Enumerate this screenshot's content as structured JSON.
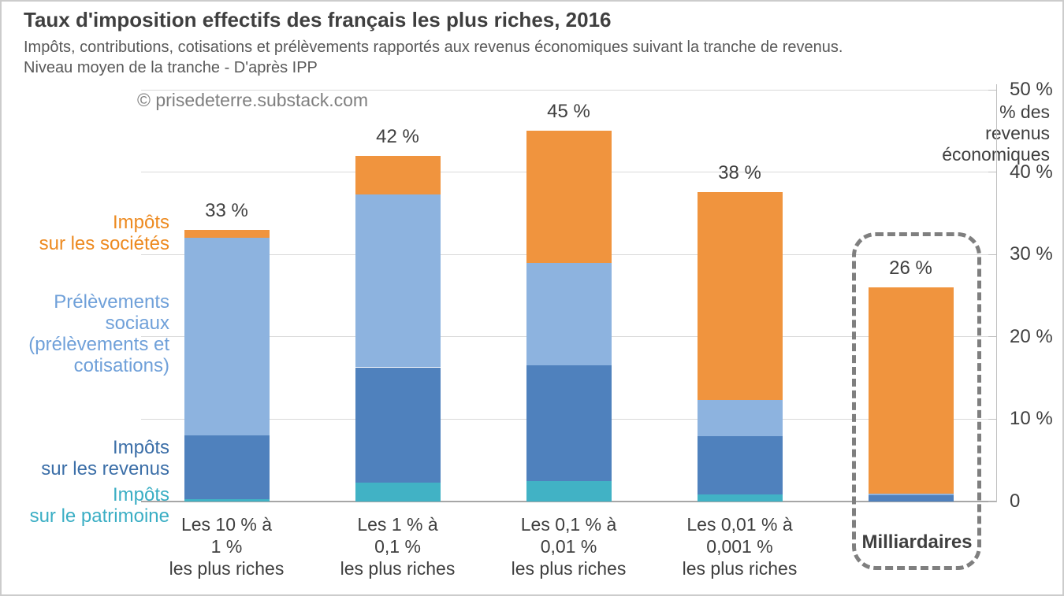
{
  "header": {
    "title": "Taux d'imposition effectifs des français les plus riches, 2016",
    "subtitle_line1": "Impôts, contributions, cotisations et prélèvements rapportés aux revenus économiques suivant la tranche de revenus.",
    "subtitle_line2": "Niveau moyen de la tranche - D'après IPP"
  },
  "watermark": "© prisedeterre.substack.com",
  "axis": {
    "tick_labels": [
      "0",
      "10 %",
      "20 %",
      "30 %",
      "40 %",
      "50 %"
    ],
    "title_lines": [
      "% des",
      "revenus",
      "économiques"
    ]
  },
  "legend": [
    {
      "name": "Impôts sur les sociétés",
      "lines": [
        "Impôts",
        "sur les sociétés"
      ],
      "color": "#ed8a20"
    },
    {
      "name": "Prélèvements sociaux (prélèvements et cotisations)",
      "lines": [
        "Prélèvements",
        "sociaux",
        "(prélèvements et",
        "cotisations)"
      ],
      "color": "#6fa0d9"
    },
    {
      "name": "Impôts sur les revenus",
      "lines": [
        "Impôts",
        "sur les revenus"
      ],
      "color": "#3c6fa8"
    },
    {
      "name": "Impôts sur le patrimoine",
      "lines": [
        "Impôts",
        "sur le patrimoine"
      ],
      "color": "#3aaec4"
    }
  ],
  "highlight": {
    "label": "Milliardaires"
  },
  "chart_data": {
    "type": "bar",
    "stacked": true,
    "title": "Taux d'imposition effectifs des français les plus riches, 2016",
    "ylabel": "% des revenus économiques",
    "ylim": [
      0,
      50
    ],
    "grid": true,
    "yaxis_side": "right",
    "categories": [
      "Les 10 % à 1 % les plus riches",
      "Les 1 % à 0,1 % les plus riches",
      "Les 0,1 % à 0,01 % les plus riches",
      "Les 0,01 % à 0,001 % les plus riches",
      "Milliardaires"
    ],
    "category_lines": [
      [
        "Les 10 % à",
        "1 %",
        "les plus riches"
      ],
      [
        "Les 1 % à",
        "0,1 %",
        "les plus riches"
      ],
      [
        "Les 0,1 % à",
        "0,01 %",
        "les plus riches"
      ],
      [
        "Les 0,01 % à",
        "0,001 %",
        "les plus riches"
      ],
      [
        "Milliardaires"
      ]
    ],
    "series": [
      {
        "name": "Impôts sur le patrimoine",
        "color": "#41b2c5",
        "values": [
          0.3,
          2.3,
          2.5,
          0.9,
          0
        ]
      },
      {
        "name": "Impôts sur les revenus",
        "color": "#4f81bd",
        "values": [
          7.7,
          14.0,
          14.0,
          7.0,
          0.8
        ]
      },
      {
        "name": "Prélèvements sociaux (prélèvements et cotisations)",
        "color": "#8db3df",
        "values": [
          24.0,
          21.0,
          12.5,
          4.4,
          0.2
        ]
      },
      {
        "name": "Impôts sur les sociétés",
        "color": "#f0943e",
        "values": [
          1.0,
          4.7,
          16.0,
          25.3,
          25.0
        ]
      }
    ],
    "totals": [
      "33 %",
      "42 %",
      "45 %",
      "38 %",
      "26 %"
    ],
    "totals_numeric": [
      33,
      42,
      45,
      38,
      26
    ]
  }
}
